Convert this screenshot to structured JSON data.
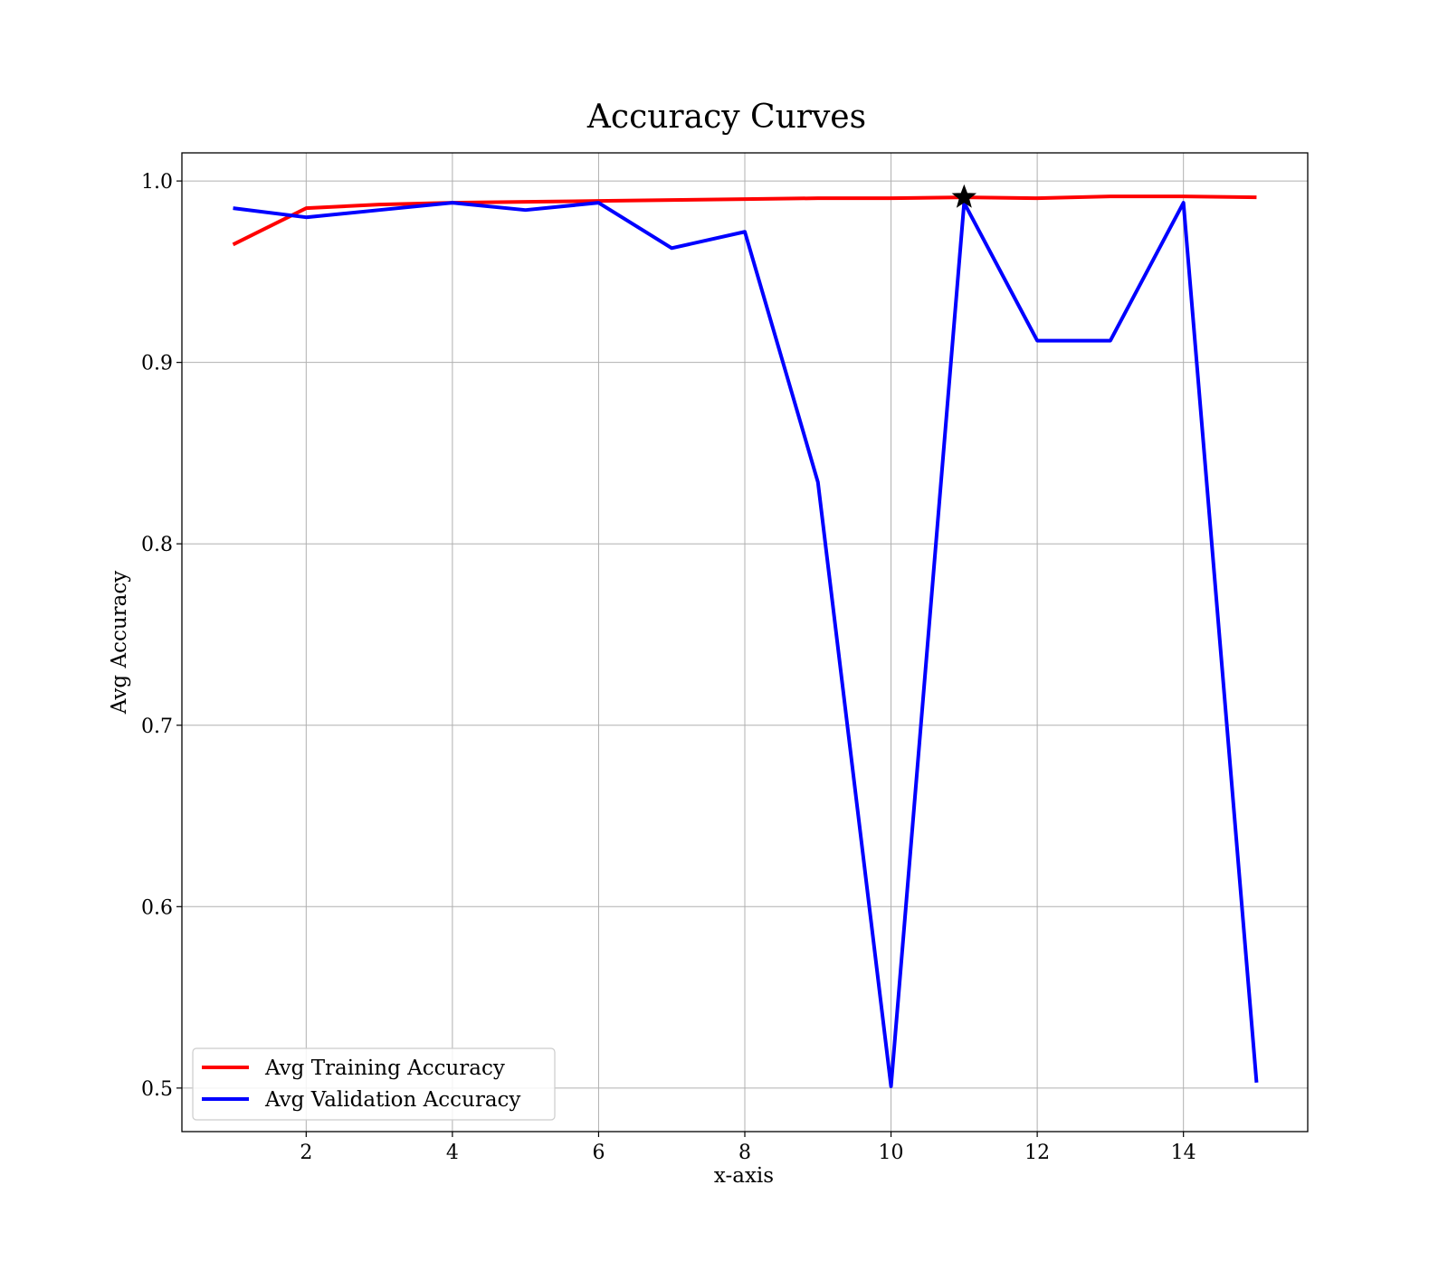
{
  "chart_data": {
    "type": "line",
    "title": "Accuracy Curves",
    "xlabel": "x-axis",
    "ylabel": "Avg Accuracy",
    "xlim": [
      0.3,
      15.7
    ],
    "ylim": [
      0.476,
      1.0155
    ],
    "xticks": [
      2,
      4,
      6,
      8,
      10,
      12,
      14
    ],
    "xtick_labels": [
      "2",
      "4",
      "6",
      "8",
      "10",
      "12",
      "14"
    ],
    "yticks": [
      0.5,
      0.6,
      0.7,
      0.8,
      0.9,
      1.0
    ],
    "ytick_labels": [
      "0.5",
      "0.6",
      "0.7",
      "0.8",
      "0.9",
      "1.0"
    ],
    "grid": true,
    "legend_position": "lower-left",
    "x": [
      1,
      2,
      3,
      4,
      5,
      6,
      7,
      8,
      9,
      10,
      11,
      12,
      13,
      14,
      15
    ],
    "series": [
      {
        "name": "Avg Training Accuracy",
        "color": "#ff0000",
        "values": [
          0.965,
          0.985,
          0.987,
          0.988,
          0.9885,
          0.989,
          0.9895,
          0.99,
          0.9905,
          0.9905,
          0.991,
          0.9905,
          0.9915,
          0.9915,
          0.991
        ]
      },
      {
        "name": "Avg Validation Accuracy",
        "color": "#0000ff",
        "values": [
          0.985,
          0.98,
          0.984,
          0.988,
          0.984,
          0.988,
          0.963,
          0.972,
          0.834,
          0.501,
          0.988,
          0.912,
          0.912,
          0.988,
          0.503
        ]
      }
    ],
    "marker": {
      "shape": "star",
      "color": "#000000",
      "x": 11,
      "y": 0.991
    }
  }
}
